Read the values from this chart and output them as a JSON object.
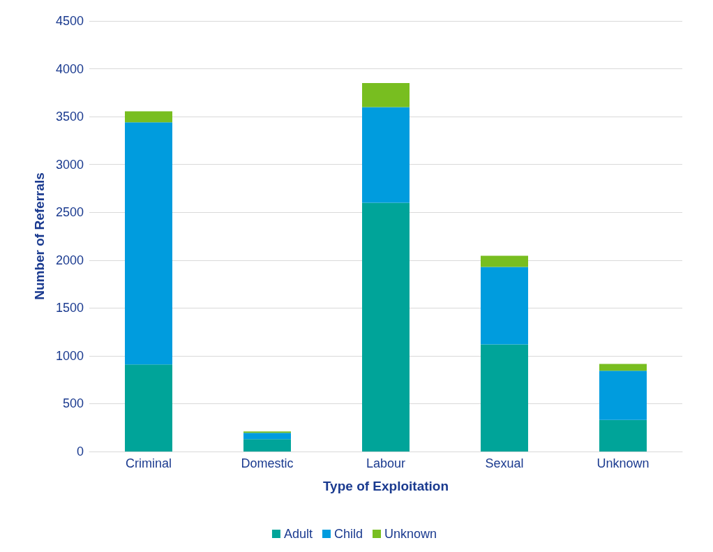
{
  "chart_data": {
    "type": "bar",
    "stacked": true,
    "xlabel": "Type of Exploitation",
    "ylabel": "Number of Referrals",
    "categories": [
      "Criminal",
      "Domestic",
      "Labour",
      "Sexual",
      "Unknown"
    ],
    "series": [
      {
        "name": "Adult",
        "color": "#00a499",
        "values": [
          910,
          130,
          2600,
          1120,
          330
        ]
      },
      {
        "name": "Child",
        "color": "#009cde",
        "values": [
          2530,
          65,
          1000,
          810,
          515
        ]
      },
      {
        "name": "Unknown",
        "color": "#78be20",
        "values": [
          115,
          14,
          250,
          115,
          70
        ]
      }
    ],
    "ylim": [
      0,
      4500
    ],
    "yticks": [
      0,
      500,
      1000,
      1500,
      2000,
      2500,
      3000,
      3500,
      4000,
      4500
    ],
    "grid": "y",
    "legend": "bottom"
  }
}
